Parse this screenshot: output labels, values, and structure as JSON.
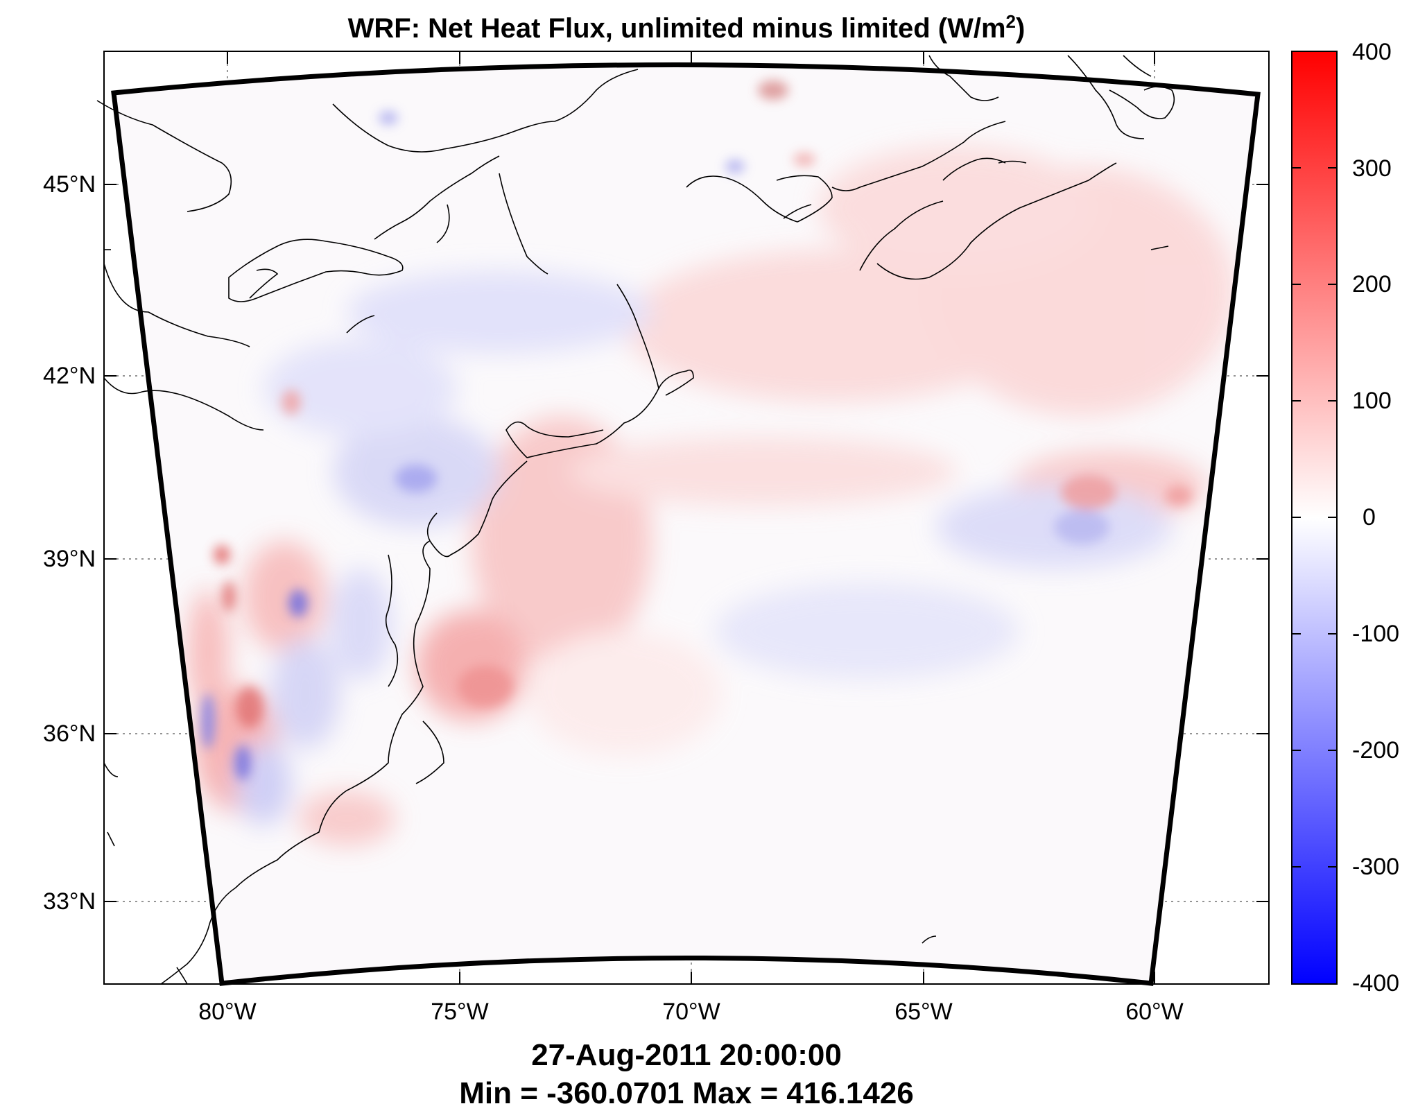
{
  "title": {
    "prefix": "WRF: Net Heat Flux, unlimited minus limited (W/m",
    "superscript": "2",
    "suffix": ")"
  },
  "axes": {
    "y_ticks": [
      "45°N",
      "42°N",
      "39°N",
      "36°N",
      "33°N"
    ],
    "x_ticks": [
      "80°W",
      "75°W",
      "70°W",
      "65°W",
      "60°W"
    ]
  },
  "colorbar": {
    "ticks": [
      "400",
      "300",
      "200",
      "100",
      "0",
      "-100",
      "-200",
      "-300",
      "-400"
    ],
    "range": [
      -400,
      400
    ],
    "colors": {
      "max": "#ff0000",
      "zero": "#ffffff",
      "min": "#0000ff"
    }
  },
  "footer": {
    "timestamp": "27-Aug-2011 20:00:00",
    "stats": "Min = -360.0701  Max = 416.1426"
  },
  "colors": {
    "domain_fill": "#fbf9fb",
    "positive": "#f5a0a0",
    "negative": "#a8a8f0"
  }
}
